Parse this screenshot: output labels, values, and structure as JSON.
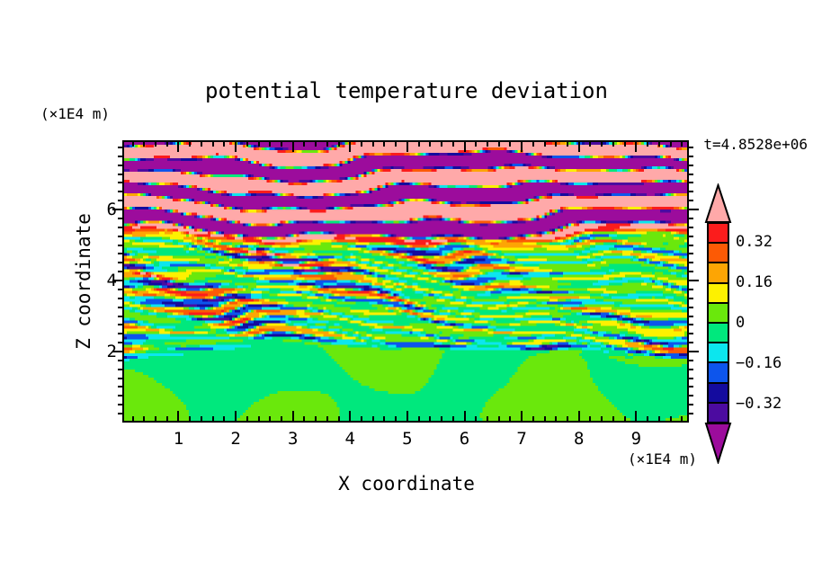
{
  "figure": {
    "title": "potential temperature deviation",
    "time_annotation": "t=4.8528e+06",
    "background_color": "#ffffff",
    "frame_color": "#000000"
  },
  "axes": {
    "x": {
      "label": "X coordinate",
      "unit": "(×1E4 m)",
      "range": [
        0.05,
        9.89
      ],
      "major_ticks": [
        1,
        2,
        3,
        4,
        5,
        6,
        7,
        8,
        9
      ],
      "minor_step": 0.2
    },
    "y": {
      "label": "Z coordinate",
      "unit": "(×1E4 m)",
      "range": [
        0.05,
        7.9
      ],
      "major_ticks": [
        2,
        4,
        6
      ],
      "minor_step": 0.25
    }
  },
  "colorbar": {
    "tick_labels": [
      "0.32",
      "0.16",
      "0",
      "-0.16",
      "-0.32"
    ],
    "over_color": "#ffa9a9",
    "under_color": "#9c0c9c",
    "position": "right, vertical, arrow ends"
  },
  "chart_data": {
    "type": "heatmap",
    "subtype": "filled_contour",
    "title": "potential temperature deviation",
    "xlabel": "X coordinate (×1E4 m)",
    "ylabel": "Z coordinate (×1E4 m)",
    "x_range": [
      0.05,
      9.89
    ],
    "y_range": [
      0.05,
      7.9
    ],
    "time_annotation": "t=4.8528e+06",
    "contour_interval": 0.08,
    "levels": [
      -0.4,
      -0.32,
      -0.24,
      -0.16,
      -0.08,
      0,
      0.08,
      0.16,
      0.24,
      0.32,
      0.4
    ],
    "colors": [
      "#9c0c9c",
      "#4c0ba0",
      "#140b9e",
      "#0d55ec",
      "#0ce6ee",
      "#00e87d",
      "#6ae80c",
      "#fdf100",
      "#fda504",
      "#fc5a05",
      "#fb1c1c",
      "#ffa9a9"
    ],
    "grid": false,
    "legend_position": "right colorbar",
    "structure": {
      "lower_layer": "z < ~2 (×1E4 m): weak deviations within ±0.08; smooth interleaved blobs of the two green levels",
      "middle_layer": "z ~2–5 (×1E4 m): dense thin horizontally-elongated turbulent streaks spanning the full range ±0.4 (yellow/orange/red and cyan/blue/navy lenses on green background, occasional pink)",
      "upper_layer": "z > ~5 (×1E4 m): thick alternating wavy bands exceeding +0.4 (pink) and below −0.4 (violet) with thin rainbow transition filaments"
    }
  }
}
